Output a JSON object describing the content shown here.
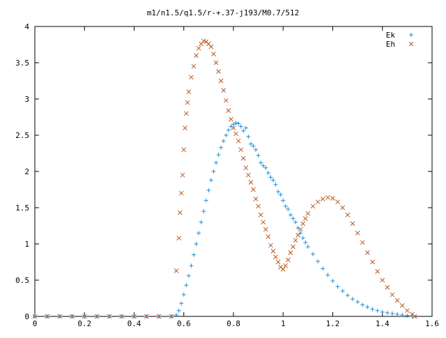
{
  "chart_data": {
    "type": "scatter",
    "title": "m1/n1.5/q1.5/r-+.37-j193/M0.7/512",
    "xlabel": "",
    "ylabel": "",
    "xlim": [
      0,
      1.6
    ],
    "ylim": [
      0,
      4
    ],
    "x_ticks": [
      "0",
      "0.2",
      "0.4",
      "0.6",
      "0.8",
      "1",
      "1.2",
      "1.4",
      "1.6"
    ],
    "y_ticks": [
      "0",
      "0.5",
      "1",
      "1.5",
      "2",
      "2.5",
      "3",
      "3.5",
      "4"
    ],
    "grid": false,
    "legend_position": "top-right",
    "series": [
      {
        "name": "Ek",
        "marker": "plus",
        "color": "#1f8fd6",
        "points": [
          [
            0.0,
            0.0
          ],
          [
            0.05,
            0.0
          ],
          [
            0.1,
            0.0
          ],
          [
            0.15,
            0.0
          ],
          [
            0.2,
            0.0
          ],
          [
            0.25,
            0.0
          ],
          [
            0.3,
            0.0
          ],
          [
            0.35,
            0.0
          ],
          [
            0.4,
            0.0
          ],
          [
            0.45,
            0.0
          ],
          [
            0.5,
            0.0
          ],
          [
            0.55,
            0.0
          ],
          [
            0.57,
            0.02
          ],
          [
            0.58,
            0.08
          ],
          [
            0.59,
            0.18
          ],
          [
            0.6,
            0.3
          ],
          [
            0.61,
            0.43
          ],
          [
            0.62,
            0.56
          ],
          [
            0.63,
            0.7
          ],
          [
            0.64,
            0.85
          ],
          [
            0.65,
            1.0
          ],
          [
            0.66,
            1.15
          ],
          [
            0.67,
            1.3
          ],
          [
            0.68,
            1.45
          ],
          [
            0.69,
            1.6
          ],
          [
            0.7,
            1.74
          ],
          [
            0.71,
            1.88
          ],
          [
            0.72,
            2.0
          ],
          [
            0.73,
            2.12
          ],
          [
            0.74,
            2.23
          ],
          [
            0.75,
            2.33
          ],
          [
            0.76,
            2.42
          ],
          [
            0.77,
            2.5
          ],
          [
            0.78,
            2.57
          ],
          [
            0.79,
            2.62
          ],
          [
            0.8,
            2.65
          ],
          [
            0.81,
            2.67
          ],
          [
            0.82,
            2.66
          ],
          [
            0.83,
            2.62
          ],
          [
            0.84,
            2.56
          ],
          [
            0.85,
            2.6
          ],
          [
            0.86,
            2.48
          ],
          [
            0.87,
            2.38
          ],
          [
            0.88,
            2.35
          ],
          [
            0.89,
            2.3
          ],
          [
            0.9,
            2.22
          ],
          [
            0.91,
            2.12
          ],
          [
            0.92,
            2.08
          ],
          [
            0.93,
            2.05
          ],
          [
            0.94,
            1.98
          ],
          [
            0.95,
            1.92
          ],
          [
            0.96,
            1.88
          ],
          [
            0.97,
            1.82
          ],
          [
            0.98,
            1.72
          ],
          [
            0.99,
            1.68
          ],
          [
            1.0,
            1.6
          ],
          [
            1.01,
            1.52
          ],
          [
            1.02,
            1.48
          ],
          [
            1.03,
            1.4
          ],
          [
            1.04,
            1.35
          ],
          [
            1.05,
            1.3
          ],
          [
            1.06,
            1.22
          ],
          [
            1.07,
            1.15
          ],
          [
            1.08,
            1.08
          ],
          [
            1.09,
            1.02
          ],
          [
            1.1,
            0.96
          ],
          [
            1.12,
            0.86
          ],
          [
            1.14,
            0.76
          ],
          [
            1.16,
            0.66
          ],
          [
            1.18,
            0.57
          ],
          [
            1.2,
            0.49
          ],
          [
            1.22,
            0.41
          ],
          [
            1.24,
            0.35
          ],
          [
            1.26,
            0.29
          ],
          [
            1.28,
            0.24
          ],
          [
            1.3,
            0.2
          ],
          [
            1.32,
            0.16
          ],
          [
            1.34,
            0.13
          ],
          [
            1.36,
            0.1
          ],
          [
            1.38,
            0.08
          ],
          [
            1.4,
            0.06
          ],
          [
            1.42,
            0.05
          ],
          [
            1.44,
            0.04
          ],
          [
            1.46,
            0.03
          ],
          [
            1.48,
            0.02
          ],
          [
            1.5,
            0.01
          ],
          [
            1.52,
            0.0
          ]
        ]
      },
      {
        "name": "Eh",
        "marker": "cross",
        "color": "#b8581c",
        "points": [
          [
            0.0,
            0.0
          ],
          [
            0.05,
            0.0
          ],
          [
            0.1,
            0.0
          ],
          [
            0.15,
            0.0
          ],
          [
            0.2,
            0.0
          ],
          [
            0.25,
            0.0
          ],
          [
            0.3,
            0.0
          ],
          [
            0.35,
            0.0
          ],
          [
            0.4,
            0.0
          ],
          [
            0.45,
            0.0
          ],
          [
            0.5,
            0.0
          ],
          [
            0.55,
            0.0
          ],
          [
            0.57,
            0.63
          ],
          [
            0.58,
            1.08
          ],
          [
            0.585,
            1.43
          ],
          [
            0.59,
            1.7
          ],
          [
            0.595,
            1.95
          ],
          [
            0.6,
            2.3
          ],
          [
            0.605,
            2.6
          ],
          [
            0.61,
            2.8
          ],
          [
            0.615,
            2.95
          ],
          [
            0.62,
            3.1
          ],
          [
            0.63,
            3.3
          ],
          [
            0.64,
            3.45
          ],
          [
            0.65,
            3.6
          ],
          [
            0.66,
            3.7
          ],
          [
            0.67,
            3.76
          ],
          [
            0.68,
            3.8
          ],
          [
            0.69,
            3.79
          ],
          [
            0.7,
            3.76
          ],
          [
            0.71,
            3.72
          ],
          [
            0.72,
            3.62
          ],
          [
            0.73,
            3.5
          ],
          [
            0.74,
            3.38
          ],
          [
            0.75,
            3.25
          ],
          [
            0.76,
            3.12
          ],
          [
            0.77,
            2.98
          ],
          [
            0.78,
            2.84
          ],
          [
            0.79,
            2.72
          ],
          [
            0.8,
            2.6
          ],
          [
            0.81,
            2.52
          ],
          [
            0.82,
            2.42
          ],
          [
            0.83,
            2.3
          ],
          [
            0.84,
            2.18
          ],
          [
            0.85,
            2.05
          ],
          [
            0.86,
            1.95
          ],
          [
            0.87,
            1.85
          ],
          [
            0.88,
            1.75
          ],
          [
            0.89,
            1.62
          ],
          [
            0.9,
            1.52
          ],
          [
            0.91,
            1.4
          ],
          [
            0.92,
            1.3
          ],
          [
            0.93,
            1.2
          ],
          [
            0.94,
            1.1
          ],
          [
            0.95,
            0.98
          ],
          [
            0.96,
            0.9
          ],
          [
            0.97,
            0.82
          ],
          [
            0.98,
            0.75
          ],
          [
            0.99,
            0.68
          ],
          [
            1.0,
            0.65
          ],
          [
            1.01,
            0.7
          ],
          [
            1.02,
            0.78
          ],
          [
            1.03,
            0.88
          ],
          [
            1.04,
            0.96
          ],
          [
            1.05,
            1.05
          ],
          [
            1.06,
            1.12
          ],
          [
            1.07,
            1.2
          ],
          [
            1.08,
            1.28
          ],
          [
            1.09,
            1.35
          ],
          [
            1.1,
            1.42
          ],
          [
            1.12,
            1.52
          ],
          [
            1.14,
            1.58
          ],
          [
            1.16,
            1.62
          ],
          [
            1.18,
            1.64
          ],
          [
            1.2,
            1.63
          ],
          [
            1.22,
            1.58
          ],
          [
            1.24,
            1.5
          ],
          [
            1.26,
            1.4
          ],
          [
            1.28,
            1.28
          ],
          [
            1.3,
            1.15
          ],
          [
            1.32,
            1.02
          ],
          [
            1.34,
            0.88
          ],
          [
            1.36,
            0.75
          ],
          [
            1.38,
            0.62
          ],
          [
            1.4,
            0.5
          ],
          [
            1.42,
            0.4
          ],
          [
            1.44,
            0.3
          ],
          [
            1.46,
            0.22
          ],
          [
            1.48,
            0.15
          ],
          [
            1.5,
            0.08
          ],
          [
            1.52,
            0.03
          ],
          [
            1.53,
            0.0
          ]
        ]
      }
    ]
  }
}
